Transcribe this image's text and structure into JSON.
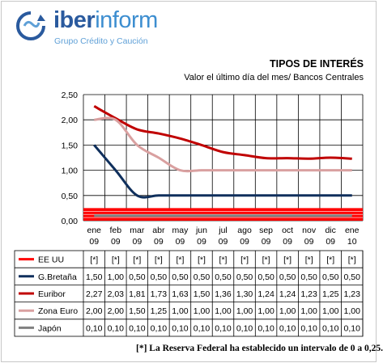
{
  "logo": {
    "brand_bold": "iber",
    "brand_rest": "inform",
    "tagline": "Grupo Crédito y Caución"
  },
  "chart_data": {
    "type": "line",
    "title": "TIPOS DE INTERÉS",
    "subtitle": "Valor el último  día del mes/ Bancos Centrales",
    "categories": [
      [
        "ene",
        "09"
      ],
      [
        "feb",
        "09"
      ],
      [
        "mar",
        "09"
      ],
      [
        "abr",
        "09"
      ],
      [
        "may",
        "09"
      ],
      [
        "jun",
        "09"
      ],
      [
        "jul",
        "09"
      ],
      [
        "ago",
        "09"
      ],
      [
        "sep",
        "09"
      ],
      [
        "oct",
        "09"
      ],
      [
        "nov",
        "09"
      ],
      [
        "dic",
        "09"
      ],
      [
        "ene",
        "10"
      ]
    ],
    "ylim": [
      0,
      2.5
    ],
    "yticks": [
      "0,00",
      "0,50",
      "1,00",
      "1,50",
      "2,00",
      "2,50"
    ],
    "grid": true,
    "series": [
      {
        "name": "EE UU",
        "color": "#ff0000",
        "band": [
          0,
          0.25
        ],
        "table": [
          "[*]",
          "[*]",
          "[*]",
          "[*]",
          "[*]",
          "[*]",
          "[*]",
          "[*]",
          "[*]",
          "[*]",
          "[*]",
          "[*]",
          "[*]"
        ]
      },
      {
        "name": "G.Bretaña",
        "color": "#0f2f5c",
        "values": [
          1.5,
          1.0,
          0.5,
          0.5,
          0.5,
          0.5,
          0.5,
          0.5,
          0.5,
          0.5,
          0.5,
          0.5,
          0.5
        ],
        "table": [
          "1,50",
          "1,00",
          "0,50",
          "0,50",
          "0,50",
          "0,50",
          "0,50",
          "0,50",
          "0,50",
          "0,50",
          "0,50",
          "0,50",
          "0,50"
        ]
      },
      {
        "name": "Euribor",
        "color": "#c00000",
        "values": [
          2.27,
          2.03,
          1.81,
          1.73,
          1.63,
          1.5,
          1.36,
          1.3,
          1.24,
          1.24,
          1.23,
          1.25,
          1.23
        ],
        "table": [
          "2,27",
          "2,03",
          "1,81",
          "1,73",
          "1,63",
          "1,50",
          "1,36",
          "1,30",
          "1,24",
          "1,24",
          "1,23",
          "1,25",
          "1,23"
        ]
      },
      {
        "name": "Zona Euro",
        "color": "#d9a0a0",
        "values": [
          2.0,
          2.0,
          1.5,
          1.25,
          1.0,
          1.0,
          1.0,
          1.0,
          1.0,
          1.0,
          1.0,
          1.0,
          1.0
        ],
        "table": [
          "2,00",
          "2,00",
          "1,50",
          "1,25",
          "1,00",
          "1,00",
          "1,00",
          "1,00",
          "1,00",
          "1,00",
          "1,00",
          "1,00",
          "1,00"
        ]
      },
      {
        "name": "Japón",
        "color": "#808080",
        "values": [
          0.1,
          0.1,
          0.1,
          0.1,
          0.1,
          0.1,
          0.1,
          0.1,
          0.1,
          0.1,
          0.1,
          0.1,
          0.1
        ],
        "table": [
          "0,10",
          "0,10",
          "0,10",
          "0,10",
          "0,10",
          "0,10",
          "0,10",
          "0,10",
          "0,10",
          "0,10",
          "0,10",
          "0,10",
          "0,10"
        ]
      }
    ],
    "footnote": "[*] La Reserva Federal ha establecido un intervalo de 0 a 0,25."
  }
}
